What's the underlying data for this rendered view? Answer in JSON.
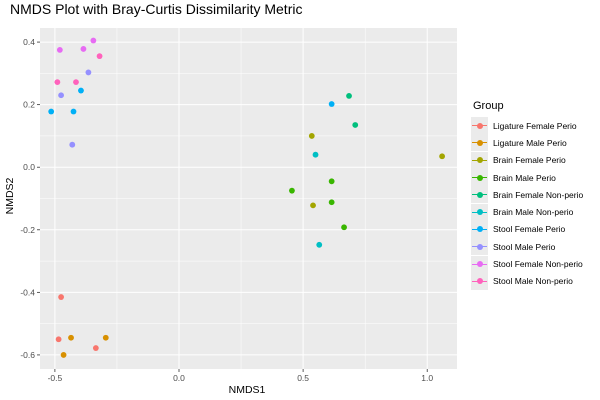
{
  "chart_data": {
    "type": "scatter",
    "title": "NMDS Plot with Bray-Curtis Dissimilarity Metric",
    "xlabel": "NMDS1",
    "ylabel": "NMDS2",
    "xlim": [
      -0.56,
      1.12
    ],
    "ylim": [
      -0.645,
      0.445
    ],
    "x_ticks": [
      -0.5,
      0.0,
      0.5,
      1.0
    ],
    "x_tick_labels": [
      "-0.5",
      "0.0",
      "0.5",
      "1.0"
    ],
    "y_ticks": [
      -0.6,
      -0.4,
      -0.2,
      0.0,
      0.2,
      0.4
    ],
    "y_tick_labels": [
      "-0.6",
      "-0.4",
      "-0.2",
      "0.0",
      "0.2",
      "0.4"
    ],
    "grid": true,
    "legend_position": "right",
    "legend_title": "Group",
    "series": [
      {
        "name": "Ligature Female Perio",
        "color": "#F8766D",
        "points": [
          [
            -0.475,
            -0.415
          ],
          [
            -0.485,
            -0.55
          ],
          [
            -0.335,
            -0.578
          ]
        ]
      },
      {
        "name": "Ligature Male Perio",
        "color": "#D89000",
        "points": [
          [
            -0.435,
            -0.545
          ],
          [
            -0.295,
            -0.545
          ],
          [
            -0.465,
            -0.6
          ]
        ]
      },
      {
        "name": "Brain Female Perio",
        "color": "#A3A500",
        "points": [
          [
            0.535,
            0.1
          ],
          [
            0.54,
            -0.122
          ],
          [
            1.06,
            0.035
          ]
        ]
      },
      {
        "name": "Brain Male Perio",
        "color": "#39B600",
        "points": [
          [
            0.455,
            -0.075
          ],
          [
            0.615,
            -0.045
          ],
          [
            0.615,
            -0.112
          ],
          [
            0.665,
            -0.192
          ]
        ]
      },
      {
        "name": "Brain Female Non-perio",
        "color": "#00BF7D",
        "points": [
          [
            0.685,
            0.228
          ],
          [
            0.71,
            0.135
          ]
        ]
      },
      {
        "name": "Brain Male Non-perio",
        "color": "#00BFC4",
        "points": [
          [
            0.55,
            0.04
          ],
          [
            0.565,
            -0.248
          ]
        ]
      },
      {
        "name": "Stool Female Perio",
        "color": "#00B0F6",
        "points": [
          [
            0.615,
            0.202
          ],
          [
            -0.515,
            0.178
          ],
          [
            -0.425,
            0.178
          ],
          [
            -0.395,
            0.245
          ]
        ]
      },
      {
        "name": "Stool Male Perio",
        "color": "#9590FF",
        "points": [
          [
            -0.475,
            0.23
          ],
          [
            -0.365,
            0.303
          ],
          [
            -0.43,
            0.072
          ]
        ]
      },
      {
        "name": "Stool Female Non-perio",
        "color": "#E76BF3",
        "points": [
          [
            -0.48,
            0.375
          ],
          [
            -0.385,
            0.378
          ],
          [
            -0.345,
            0.405
          ]
        ]
      },
      {
        "name": "Stool Male Non-perio",
        "color": "#FF62BC",
        "points": [
          [
            -0.32,
            0.355
          ],
          [
            -0.49,
            0.272
          ],
          [
            -0.415,
            0.272
          ]
        ]
      }
    ]
  }
}
